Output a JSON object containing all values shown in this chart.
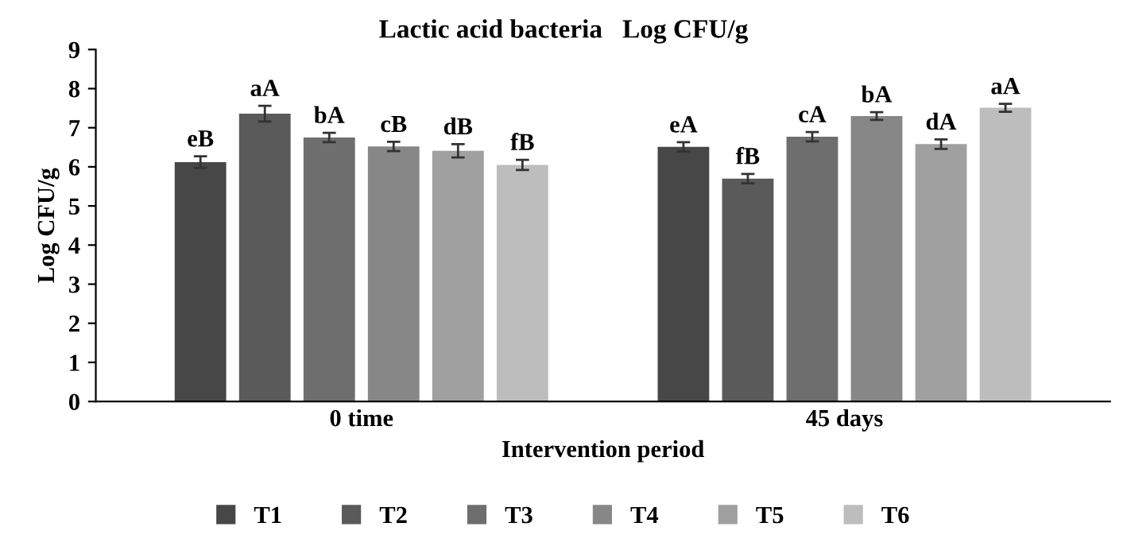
{
  "chart_data": {
    "type": "bar",
    "title": "Lactic acid bacteria   Log CFU/g",
    "xlabel": "Intervention period",
    "ylabel": "Log CFU/g",
    "categories": [
      "0 time",
      "45 days"
    ],
    "series": [
      {
        "name": "T1",
        "color": "#474747",
        "values": [
          6.12,
          6.51
        ],
        "errors": [
          0.15,
          0.12
        ],
        "value_labels": [
          "eB",
          "eA"
        ]
      },
      {
        "name": "T2",
        "color": "#5a5a5a",
        "values": [
          7.36,
          5.7
        ],
        "errors": [
          0.2,
          0.12
        ],
        "value_labels": [
          "aA",
          "fB"
        ]
      },
      {
        "name": "T3",
        "color": "#6e6e6e",
        "values": [
          6.75,
          6.77
        ],
        "errors": [
          0.12,
          0.12
        ],
        "value_labels": [
          "bA",
          "cA"
        ]
      },
      {
        "name": "T4",
        "color": "#878787",
        "values": [
          6.52,
          7.3
        ],
        "errors": [
          0.12,
          0.1
        ],
        "value_labels": [
          "cB",
          "bA"
        ]
      },
      {
        "name": "T5",
        "color": "#a0a0a0",
        "values": [
          6.41,
          6.58
        ],
        "errors": [
          0.17,
          0.12
        ],
        "value_labels": [
          "dB",
          "dA"
        ]
      },
      {
        "name": "T6",
        "color": "#bdbdbd",
        "values": [
          6.05,
          7.51
        ],
        "errors": [
          0.13,
          0.1
        ],
        "value_labels": [
          "fB",
          "aA"
        ]
      }
    ],
    "ylim": [
      0,
      9
    ],
    "yticks": [
      0,
      1,
      2,
      3,
      4,
      5,
      6,
      7,
      8,
      9
    ],
    "grid": false,
    "legend": "bottom"
  }
}
